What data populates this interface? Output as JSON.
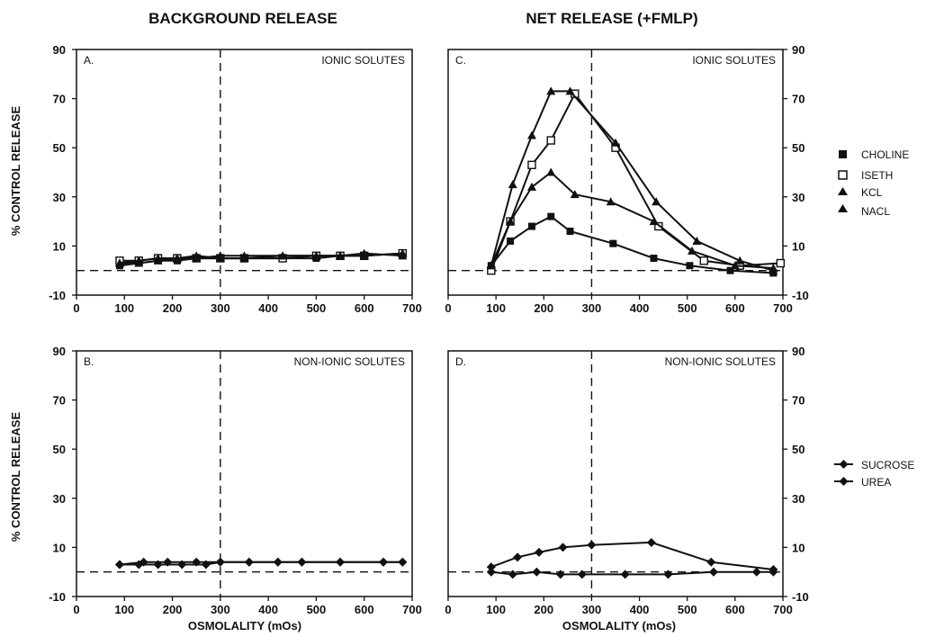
{
  "figure": {
    "col_titles": [
      "BACKGROUND RELEASE",
      "NET RELEASE (+FMLP)"
    ],
    "ylabel": "% CONTROL RELEASE",
    "xlabel": "OSMOLALITY (mOs)"
  },
  "legend_ionic": [
    "CHOLINE",
    "ISETH",
    "KCL",
    "NACL"
  ],
  "legend_nonionic": [
    "SUCROSE",
    "UREA"
  ],
  "chart_data": [
    {
      "type": "line",
      "panel": "A.",
      "annotation": "IONIC SOLUTES",
      "xlim": [
        0,
        700
      ],
      "ylim": [
        -10,
        90
      ],
      "xticks": [
        0,
        100,
        200,
        300,
        400,
        500,
        600,
        700
      ],
      "yticks": [
        -10,
        10,
        30,
        50,
        70,
        90
      ],
      "refline_x": 300,
      "refline_y": 0,
      "yaxis_side": "left",
      "series": [
        {
          "name": "CHOLINE",
          "marker": "square-filled",
          "x": [
            90,
            130,
            170,
            210,
            250,
            300,
            350,
            430,
            500,
            550,
            600,
            680
          ],
          "y": [
            2,
            3,
            4,
            4,
            5,
            5,
            5,
            5,
            5,
            6,
            6,
            7
          ]
        },
        {
          "name": "ISETH",
          "marker": "square-open",
          "x": [
            90,
            130,
            170,
            210,
            250,
            300,
            350,
            430,
            500,
            550,
            600,
            680
          ],
          "y": [
            4,
            4,
            5,
            5,
            5,
            5,
            5,
            5,
            6,
            6,
            6,
            7
          ]
        },
        {
          "name": "KCL",
          "marker": "triangle",
          "x": [
            90,
            130,
            170,
            210,
            250,
            300,
            350,
            430,
            500,
            550,
            600,
            680
          ],
          "y": [
            3,
            3,
            4,
            5,
            6,
            5,
            5,
            6,
            6,
            6,
            7,
            6
          ]
        },
        {
          "name": "NACL",
          "marker": "triangle",
          "x": [
            90,
            130,
            170,
            210,
            250,
            300,
            350,
            430,
            500,
            550,
            600,
            680
          ],
          "y": [
            3,
            4,
            5,
            5,
            5,
            6,
            6,
            6,
            6,
            6,
            6,
            7
          ]
        }
      ]
    },
    {
      "type": "line",
      "panel": "B.",
      "annotation": "NON-IONIC SOLUTES",
      "xlim": [
        0,
        700
      ],
      "ylim": [
        -10,
        90
      ],
      "xticks": [
        0,
        100,
        200,
        300,
        400,
        500,
        600,
        700
      ],
      "yticks": [
        -10,
        10,
        30,
        50,
        70,
        90
      ],
      "refline_x": 300,
      "refline_y": 0,
      "yaxis_side": "left",
      "series": [
        {
          "name": "SUCROSE",
          "marker": "diamond",
          "x": [
            90,
            140,
            190,
            250,
            300,
            360,
            420,
            470,
            550,
            640,
            680
          ],
          "y": [
            3,
            4,
            4,
            4,
            4,
            4,
            4,
            4,
            4,
            4,
            4
          ]
        },
        {
          "name": "UREA",
          "marker": "diamond",
          "x": [
            90,
            130,
            170,
            220,
            270,
            300,
            360,
            420,
            470,
            550,
            640,
            680
          ],
          "y": [
            3,
            3,
            3,
            3,
            3,
            4,
            4,
            4,
            4,
            4,
            4,
            4
          ]
        }
      ]
    },
    {
      "type": "line",
      "panel": "C.",
      "annotation": "IONIC SOLUTES",
      "xlim": [
        0,
        700
      ],
      "ylim": [
        -10,
        90
      ],
      "xticks": [
        0,
        100,
        200,
        300,
        400,
        500,
        600,
        700
      ],
      "yticks": [
        -10,
        10,
        30,
        50,
        70,
        90
      ],
      "refline_x": 300,
      "refline_y": 0,
      "yaxis_side": "right",
      "series": [
        {
          "name": "CHOLINE",
          "marker": "square-filled",
          "x": [
            90,
            130,
            175,
            215,
            255,
            345,
            430,
            505,
            590,
            680
          ],
          "y": [
            2,
            12,
            18,
            22,
            16,
            11,
            5,
            2,
            0,
            -1
          ]
        },
        {
          "name": "ISETH",
          "marker": "square-open",
          "x": [
            90,
            130,
            175,
            215,
            265,
            350,
            440,
            535,
            610,
            695
          ],
          "y": [
            0,
            20,
            43,
            53,
            72,
            50,
            18,
            4,
            2,
            3
          ]
        },
        {
          "name": "KCL",
          "marker": "triangle",
          "x": [
            90,
            130,
            175,
            215,
            265,
            340,
            430,
            510,
            600,
            680
          ],
          "y": [
            2,
            20,
            34,
            40,
            31,
            28,
            20,
            8,
            2,
            1
          ]
        },
        {
          "name": "NACL",
          "marker": "triangle",
          "x": [
            90,
            135,
            175,
            215,
            255,
            350,
            435,
            520,
            610,
            680
          ],
          "y": [
            2,
            35,
            55,
            73,
            73,
            52,
            28,
            12,
            4,
            0
          ]
        }
      ]
    },
    {
      "type": "line",
      "panel": "D.",
      "annotation": "NON-IONIC SOLUTES",
      "xlim": [
        0,
        700
      ],
      "ylim": [
        -10,
        90
      ],
      "xticks": [
        0,
        100,
        200,
        300,
        400,
        500,
        600,
        700
      ],
      "yticks": [
        -10,
        10,
        30,
        50,
        70,
        90
      ],
      "refline_x": 300,
      "refline_y": 0,
      "yaxis_side": "right",
      "series": [
        {
          "name": "SUCROSE",
          "marker": "diamond",
          "x": [
            90,
            145,
            190,
            240,
            300,
            425,
            550,
            680
          ],
          "y": [
            2,
            6,
            8,
            10,
            11,
            12,
            4,
            1
          ]
        },
        {
          "name": "UREA",
          "marker": "diamond",
          "x": [
            90,
            135,
            185,
            235,
            280,
            370,
            460,
            555,
            645,
            680
          ],
          "y": [
            0,
            -1,
            0,
            -1,
            -1,
            -1,
            -1,
            0,
            0,
            0
          ]
        }
      ]
    }
  ]
}
